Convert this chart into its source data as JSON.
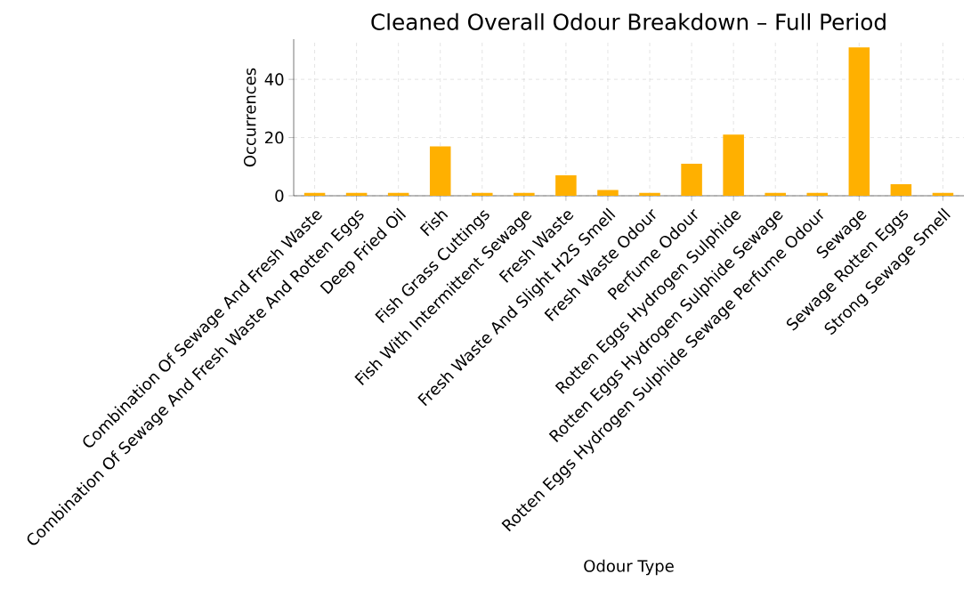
{
  "chart_data": {
    "type": "bar",
    "title": "Cleaned Overall Odour Breakdown – Full Period",
    "xlabel": "Odour Type",
    "ylabel": "Occurrences",
    "categories": [
      "Combination Of Sewage And Fresh Waste",
      "Combination Of Sewage And Fresh Waste And Rotten Eggs",
      "Deep Fried Oil",
      "Fish",
      "Fish Grass Cuttings",
      "Fish With Intermittent Sewage",
      "Fresh Waste",
      "Fresh Waste And Slight H2S Smell",
      "Fresh Waste Odour",
      "Perfume Odour",
      "Rotten Eggs Hydrogen Sulphide",
      "Rotten Eggs Hydrogen Sulphide Sewage",
      "Rotten Eggs Hydrogen Sulphide Sewage Perfume Odour",
      "Sewage",
      "Sewage Rotten Eggs",
      "Strong Sewage Smell"
    ],
    "values": [
      1,
      1,
      1,
      17,
      1,
      1,
      7,
      2,
      1,
      11,
      21,
      1,
      1,
      51,
      4,
      1
    ],
    "color": "#ffb000",
    "ylim": [
      0,
      53.8
    ],
    "yticks": [
      0,
      20,
      40
    ],
    "grid": true
  }
}
